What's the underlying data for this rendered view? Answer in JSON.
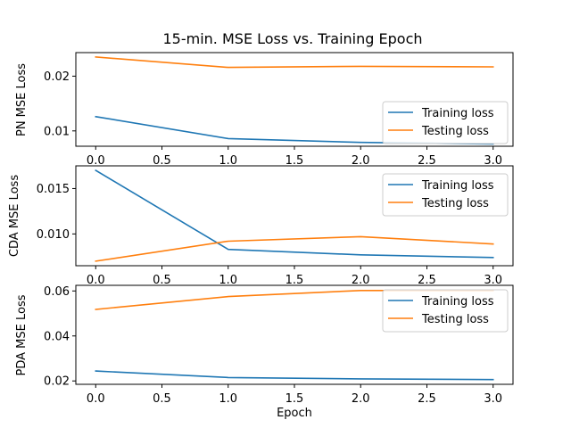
{
  "chart_data": [
    {
      "type": "line",
      "title": "15-min. MSE Loss vs. Training Epoch",
      "xlabel": "",
      "ylabel": "PN MSE Loss",
      "x": [
        0,
        1,
        2,
        3
      ],
      "xlim": [
        -0.15,
        3.15
      ],
      "ylim": [
        0.0072,
        0.0243
      ],
      "xticks": [
        0.0,
        0.5,
        1.0,
        1.5,
        2.0,
        2.5,
        3.0
      ],
      "xtick_labels": [
        "0.0",
        "0.5",
        "1.0",
        "1.5",
        "2.0",
        "2.5",
        "3.0"
      ],
      "yticks": [
        0.01,
        0.02
      ],
      "ytick_labels": [
        "0.01",
        "0.02"
      ],
      "legend": "lower-right",
      "grid": false,
      "series": [
        {
          "name": "Training loss",
          "color": "#1f77b4",
          "values": [
            0.0126,
            0.0086,
            0.0079,
            0.0076
          ]
        },
        {
          "name": "Testing loss",
          "color": "#ff7f0e",
          "values": [
            0.0235,
            0.0216,
            0.0218,
            0.0217
          ]
        }
      ]
    },
    {
      "type": "line",
      "title": "",
      "xlabel": "",
      "ylabel": "CDA MSE Loss",
      "x": [
        0,
        1,
        2,
        3
      ],
      "xlim": [
        -0.15,
        3.15
      ],
      "ylim": [
        0.0065,
        0.0175
      ],
      "xticks": [
        0.0,
        0.5,
        1.0,
        1.5,
        2.0,
        2.5,
        3.0
      ],
      "xtick_labels": [
        "0.0",
        "0.5",
        "1.0",
        "1.5",
        "2.0",
        "2.5",
        "3.0"
      ],
      "yticks": [
        0.01,
        0.015
      ],
      "ytick_labels": [
        "0.010",
        "0.015"
      ],
      "legend": "upper-right",
      "grid": false,
      "series": [
        {
          "name": "Training loss",
          "color": "#1f77b4",
          "values": [
            0.017,
            0.0083,
            0.0077,
            0.0074
          ]
        },
        {
          "name": "Testing loss",
          "color": "#ff7f0e",
          "values": [
            0.007,
            0.0092,
            0.0097,
            0.0089
          ]
        }
      ]
    },
    {
      "type": "line",
      "title": "",
      "xlabel": "Epoch",
      "ylabel": "PDA MSE Loss",
      "x": [
        0,
        1,
        2,
        3
      ],
      "xlim": [
        -0.15,
        3.15
      ],
      "ylim": [
        0.0185,
        0.0625
      ],
      "xticks": [
        0.0,
        0.5,
        1.0,
        1.5,
        2.0,
        2.5,
        3.0
      ],
      "xtick_labels": [
        "0.0",
        "0.5",
        "1.0",
        "1.5",
        "2.0",
        "2.5",
        "3.0"
      ],
      "yticks": [
        0.02,
        0.04,
        0.06
      ],
      "ytick_labels": [
        "0.02",
        "0.04",
        "0.06"
      ],
      "legend": "upper-right",
      "grid": false,
      "series": [
        {
          "name": "Training loss",
          "color": "#1f77b4",
          "values": [
            0.0244,
            0.0215,
            0.0209,
            0.0206
          ]
        },
        {
          "name": "Testing loss",
          "color": "#ff7f0e",
          "values": [
            0.0518,
            0.0575,
            0.0602,
            0.0602
          ]
        }
      ]
    }
  ]
}
